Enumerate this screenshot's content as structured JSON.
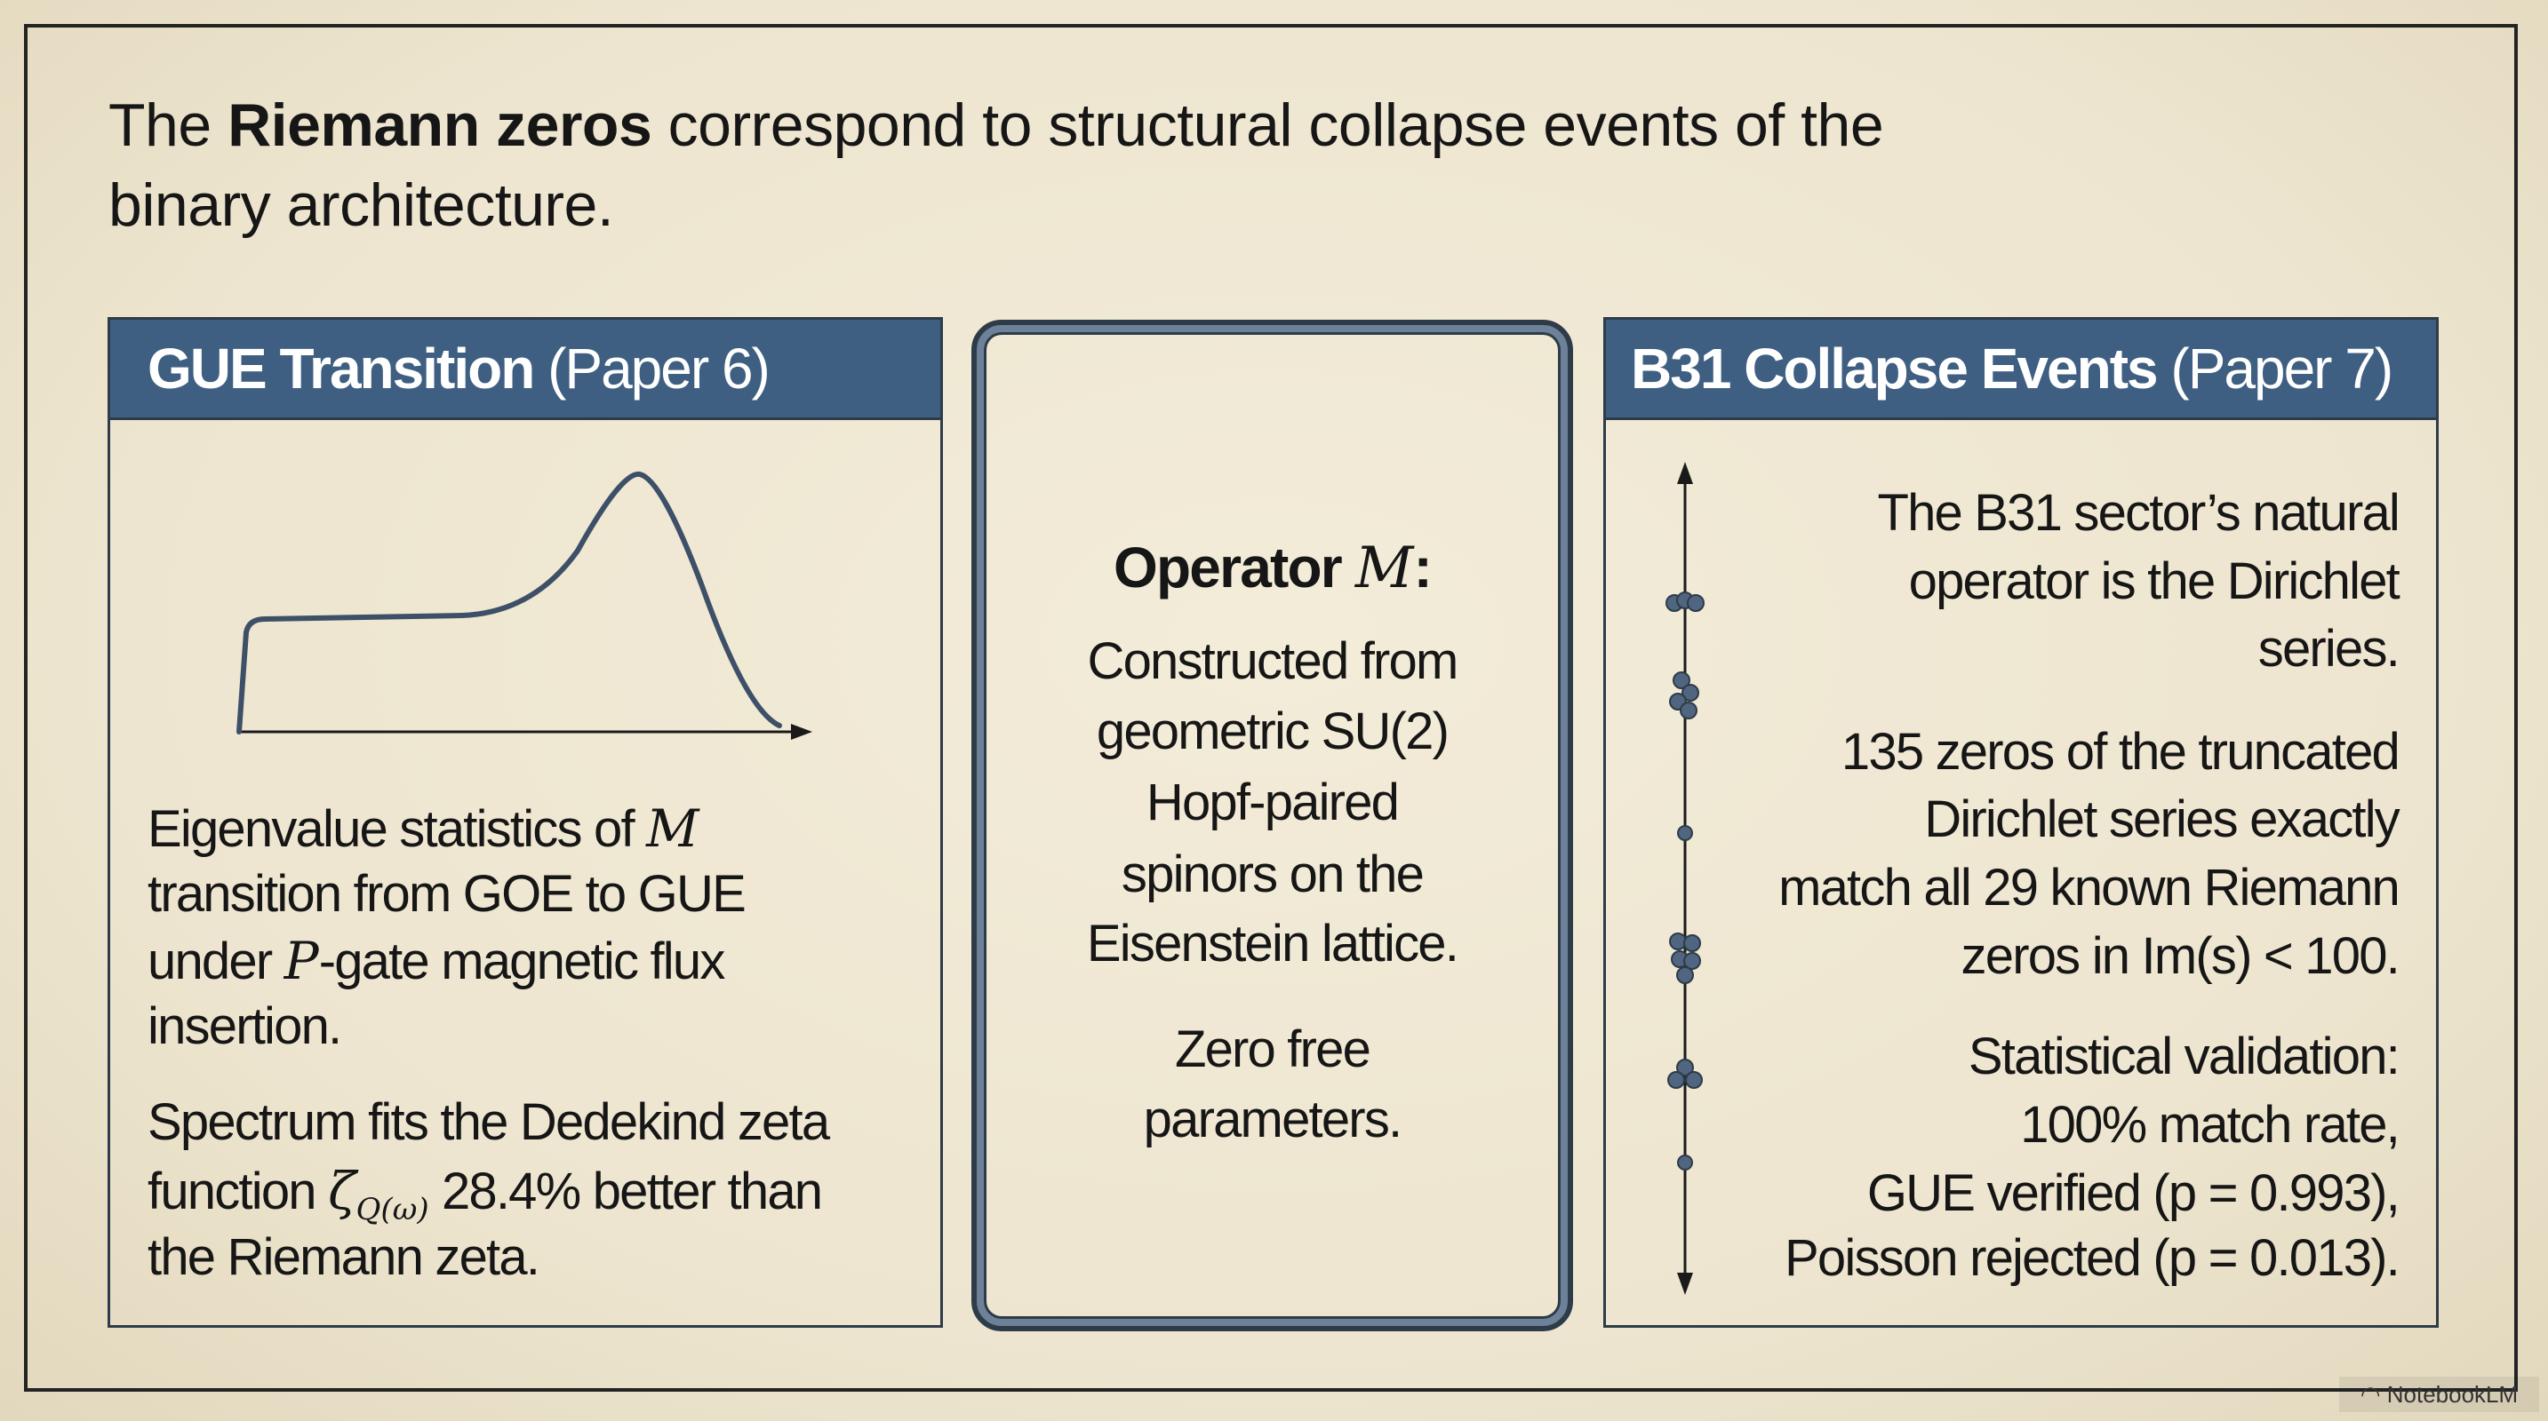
{
  "title": {
    "pre": "The ",
    "bold": "Riemann zeros",
    "post": " correspond to structural collapse events of the",
    "line2": "binary architecture."
  },
  "left": {
    "header_bold": "GUE Transition",
    "header_rest": " (Paper 6)",
    "p1": [
      "Eigenvalue statistics of ",
      "M",
      "transition from GOE to GUE",
      "under ",
      "P",
      "-gate magnetic flux",
      "insertion."
    ],
    "p2": [
      "Spectrum fits the Dedekind zeta",
      "function ",
      "ζ",
      "Q(ω)",
      " 28.4% better than",
      "the Riemann zeta."
    ]
  },
  "middle": {
    "heading": "Operator ",
    "heading_math": "M",
    "heading_colon": ":",
    "p1": [
      "Constructed from",
      "geometric SU(2)",
      "Hopf-paired",
      "spinors on the",
      "Eisenstein lattice."
    ],
    "p2": [
      "Zero free",
      "parameters."
    ]
  },
  "right": {
    "header_bold": "B31 Collapse Events",
    "header_rest": " (Paper 7)",
    "p1": [
      "The B31 sector’s natural",
      "operator is the Dirichlet",
      "series."
    ],
    "p2": [
      "135 zeros of the truncated",
      "Dirichlet series exactly",
      "match all 29 known Riemann",
      "zeros in Im(s) < 100."
    ],
    "p3": [
      "Statistical validation:",
      "100% match rate,",
      "GUE verified (p = 0.993),",
      "Poisson rejected (p = 0.013)."
    ]
  },
  "watermark": "NotebookLM",
  "colors": {
    "header": "#3f5f82",
    "border": "#2e3b48",
    "dots": "#4f6580",
    "background": "#efe8d4"
  }
}
